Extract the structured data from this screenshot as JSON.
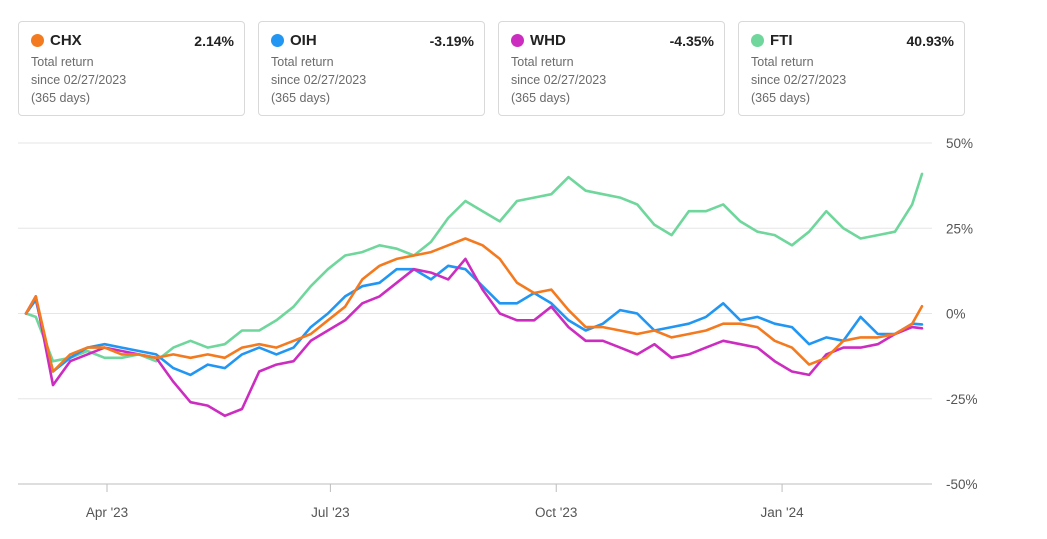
{
  "legend_cards": [
    {
      "ticker": "CHX",
      "return": "2.14%",
      "color": "#f47a1f",
      "label": "Total return",
      "since": "since 02/27/2023",
      "days": "(365 days)"
    },
    {
      "ticker": "OIH",
      "return": "-3.19%",
      "color": "#2196f3",
      "label": "Total return",
      "since": "since 02/27/2023",
      "days": "(365 days)"
    },
    {
      "ticker": "WHD",
      "return": "-4.35%",
      "color": "#cc2dc0",
      "label": "Total return",
      "since": "since 02/27/2023",
      "days": "(365 days)"
    },
    {
      "ticker": "FTI",
      "return": "40.93%",
      "color": "#6fd69c",
      "label": "Total return",
      "since": "since 02/27/2023",
      "days": "(365 days)"
    }
  ],
  "chart_data": {
    "type": "line",
    "title": "",
    "xlabel": "",
    "ylabel": "",
    "x": [
      "2023-02-27",
      "2023-03-03",
      "2023-03-10",
      "2023-03-17",
      "2023-03-24",
      "2023-03-31",
      "2023-04-07",
      "2023-04-14",
      "2023-04-21",
      "2023-04-28",
      "2023-05-05",
      "2023-05-12",
      "2023-05-19",
      "2023-05-26",
      "2023-06-02",
      "2023-06-09",
      "2023-06-16",
      "2023-06-23",
      "2023-06-30",
      "2023-07-07",
      "2023-07-14",
      "2023-07-21",
      "2023-07-28",
      "2023-08-04",
      "2023-08-11",
      "2023-08-18",
      "2023-08-25",
      "2023-09-01",
      "2023-09-08",
      "2023-09-15",
      "2023-09-22",
      "2023-09-29",
      "2023-10-06",
      "2023-10-13",
      "2023-10-20",
      "2023-10-27",
      "2023-11-03",
      "2023-11-10",
      "2023-11-17",
      "2023-11-24",
      "2023-12-01",
      "2023-12-08",
      "2023-12-15",
      "2023-12-22",
      "2023-12-29",
      "2024-01-05",
      "2024-01-12",
      "2024-01-19",
      "2024-01-26",
      "2024-02-02",
      "2024-02-09",
      "2024-02-16",
      "2024-02-23",
      "2024-02-27"
    ],
    "x_tick_labels": [
      "Apr '23",
      "Jul '23",
      "Oct '23",
      "Jan '24"
    ],
    "x_tick_dates": [
      "2023-04-01",
      "2023-07-01",
      "2023-10-01",
      "2024-01-01"
    ],
    "y_tick_labels": [
      "50%",
      "25%",
      "0%",
      "-25%",
      "-50%"
    ],
    "y_ticks": [
      50,
      25,
      0,
      -25,
      -50
    ],
    "ylim": [
      -50,
      50
    ],
    "grid": true,
    "legend": "top",
    "series": [
      {
        "name": "CHX",
        "color": "#f47a1f",
        "values": [
          0,
          5,
          -17,
          -12,
          -10,
          -10,
          -12,
          -12,
          -13,
          -12,
          -13,
          -12,
          -13,
          -10,
          -9,
          -10,
          -8,
          -6,
          -2,
          2,
          10,
          14,
          16,
          17,
          18,
          20,
          22,
          20,
          16,
          9,
          6,
          7,
          1,
          -4,
          -4,
          -5,
          -6,
          -5,
          -7,
          -6,
          -5,
          -3,
          -3,
          -4,
          -8,
          -10,
          -15,
          -13,
          -8,
          -7,
          -7,
          -6,
          -3,
          2.14
        ]
      },
      {
        "name": "OIH",
        "color": "#2196f3",
        "values": [
          0,
          4,
          -17,
          -13,
          -10,
          -9,
          -10,
          -11,
          -12,
          -16,
          -18,
          -15,
          -16,
          -12,
          -10,
          -12,
          -10,
          -4,
          0,
          5,
          8,
          9,
          13,
          13,
          10,
          14,
          13,
          8,
          3,
          3,
          6,
          3,
          -2,
          -5,
          -3,
          1,
          0,
          -5,
          -4,
          -3,
          -1,
          3,
          -2,
          -1,
          -3,
          -4,
          -9,
          -7,
          -8,
          -1,
          -6,
          -6,
          -3,
          -3.19
        ]
      },
      {
        "name": "WHD",
        "color": "#cc2dc0",
        "values": [
          0,
          5,
          -21,
          -14,
          -12,
          -10,
          -11,
          -12,
          -13,
          -20,
          -26,
          -27,
          -30,
          -28,
          -17,
          -15,
          -14,
          -8,
          -5,
          -2,
          3,
          5,
          9,
          13,
          12,
          10,
          16,
          7,
          0,
          -2,
          -2,
          2,
          -4,
          -8,
          -8,
          -10,
          -12,
          -9,
          -13,
          -12,
          -10,
          -8,
          -9,
          -10,
          -14,
          -17,
          -18,
          -12,
          -10,
          -10,
          -9,
          -6,
          -4,
          -4.35
        ]
      },
      {
        "name": "FTI",
        "color": "#6fd69c",
        "values": [
          0,
          -1,
          -14,
          -13,
          -11,
          -13,
          -13,
          -12,
          -14,
          -10,
          -8,
          -10,
          -9,
          -5,
          -5,
          -2,
          2,
          8,
          13,
          17,
          18,
          20,
          19,
          17,
          21,
          28,
          33,
          30,
          27,
          33,
          34,
          35,
          40,
          36,
          35,
          34,
          32,
          26,
          23,
          30,
          30,
          32,
          27,
          24,
          23,
          20,
          24,
          30,
          25,
          22,
          23,
          24,
          32,
          40.93
        ]
      }
    ]
  }
}
